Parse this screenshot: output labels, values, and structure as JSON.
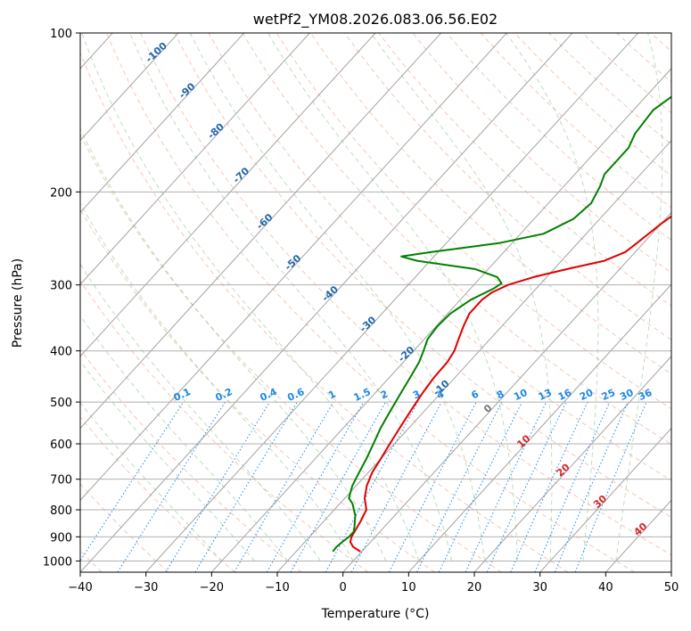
{
  "chart_data": {
    "type": "skew-t",
    "title": "wetPf2_YM08.2026.083.06.56.E02",
    "xlabel": "Temperature (°C)",
    "ylabel": "Pressure (hPa)",
    "xlim": [
      -40,
      50
    ],
    "ylim": [
      1050,
      100
    ],
    "x_ticks": [
      -40,
      -30,
      -20,
      -10,
      0,
      10,
      20,
      30,
      40,
      50
    ],
    "y_ticks": [
      100,
      200,
      300,
      400,
      500,
      600,
      700,
      800,
      900,
      1000
    ],
    "x_tick_labels": [
      "−40",
      "−30",
      "−20",
      "−10",
      "0",
      "10",
      "20",
      "30",
      "40",
      "50"
    ],
    "y_tick_labels": [
      "100",
      "200",
      "300",
      "400",
      "500",
      "600",
      "700",
      "800",
      "900",
      "1000"
    ],
    "series": [
      {
        "name": "Temperature",
        "color": "#e00000",
        "points": [
          [
            960,
            -0.2
          ],
          [
            940,
            -2.0
          ],
          [
            920,
            -3.1
          ],
          [
            900,
            -3.6
          ],
          [
            870,
            -4.0
          ],
          [
            840,
            -4.4
          ],
          [
            800,
            -5.1
          ],
          [
            760,
            -7.0
          ],
          [
            720,
            -8.4
          ],
          [
            680,
            -9.4
          ],
          [
            640,
            -10.0
          ],
          [
            600,
            -10.7
          ],
          [
            560,
            -11.4
          ],
          [
            520,
            -12.1
          ],
          [
            480,
            -12.8
          ],
          [
            450,
            -13.2
          ],
          [
            420,
            -13.3
          ],
          [
            400,
            -13.8
          ],
          [
            380,
            -14.8
          ],
          [
            360,
            -15.8
          ],
          [
            340,
            -16.7
          ],
          [
            320,
            -16.7
          ],
          [
            310,
            -16.2
          ],
          [
            300,
            -14.8
          ],
          [
            290,
            -12.0
          ],
          [
            280,
            -8.0
          ],
          [
            270,
            -3.5
          ],
          [
            260,
            -1.5
          ],
          [
            250,
            -1.0
          ],
          [
            230,
            0.0
          ],
          [
            210,
            1.5
          ],
          [
            190,
            4.0
          ],
          [
            170,
            7.0
          ],
          [
            150,
            10.0
          ],
          [
            130,
            14.0
          ],
          [
            115,
            17.5
          ],
          [
            105,
            20.0
          ],
          [
            100,
            21.0
          ]
        ]
      },
      {
        "name": "Dewpoint",
        "color": "#008000",
        "points": [
          [
            960,
            -4.4
          ],
          [
            940,
            -4.5
          ],
          [
            920,
            -4.3
          ],
          [
            900,
            -4.0
          ],
          [
            880,
            -4.0
          ],
          [
            860,
            -4.6
          ],
          [
            840,
            -5.3
          ],
          [
            820,
            -6.0
          ],
          [
            800,
            -7.0
          ],
          [
            780,
            -8.0
          ],
          [
            760,
            -9.4
          ],
          [
            720,
            -10.6
          ],
          [
            680,
            -11.4
          ],
          [
            640,
            -12.2
          ],
          [
            600,
            -13.2
          ],
          [
            560,
            -14.3
          ],
          [
            520,
            -15.2
          ],
          [
            480,
            -16.1
          ],
          [
            450,
            -16.8
          ],
          [
            420,
            -17.6
          ],
          [
            400,
            -18.5
          ],
          [
            380,
            -19.5
          ],
          [
            360,
            -19.8
          ],
          [
            340,
            -19.6
          ],
          [
            320,
            -18.4
          ],
          [
            305,
            -16.5
          ],
          [
            298,
            -16.0
          ],
          [
            290,
            -17.5
          ],
          [
            280,
            -22.0
          ],
          [
            270,
            -32.0
          ],
          [
            265,
            -35.0
          ],
          [
            260,
            -31.0
          ],
          [
            250,
            -22.0
          ],
          [
            240,
            -16.5
          ],
          [
            225,
            -14.0
          ],
          [
            210,
            -13.5
          ],
          [
            195,
            -14.5
          ],
          [
            185,
            -15.5
          ],
          [
            175,
            -15.5
          ],
          [
            165,
            -15.5
          ],
          [
            155,
            -16.5
          ],
          [
            140,
            -17.0
          ],
          [
            130,
            -15.8
          ],
          [
            120,
            -14.0
          ],
          [
            110,
            -12.0
          ],
          [
            104,
            -10.5
          ],
          [
            100,
            -9.5
          ]
        ]
      }
    ],
    "isotherm_labels": [
      "-100",
      "-90",
      "-80",
      "-70",
      "-60",
      "-50",
      "-40",
      "-30",
      "-20",
      "-10"
    ],
    "mixing_ratio_labels": [
      "0.1",
      "0.2",
      "0.4",
      "0.6",
      "1",
      "1.5",
      "2",
      "3",
      "4",
      "6",
      "8",
      "10",
      "13",
      "16",
      "20",
      "25",
      "30",
      "36"
    ],
    "isotherm_red_labels": [
      "0",
      "10",
      "20",
      "30",
      "40"
    ]
  }
}
